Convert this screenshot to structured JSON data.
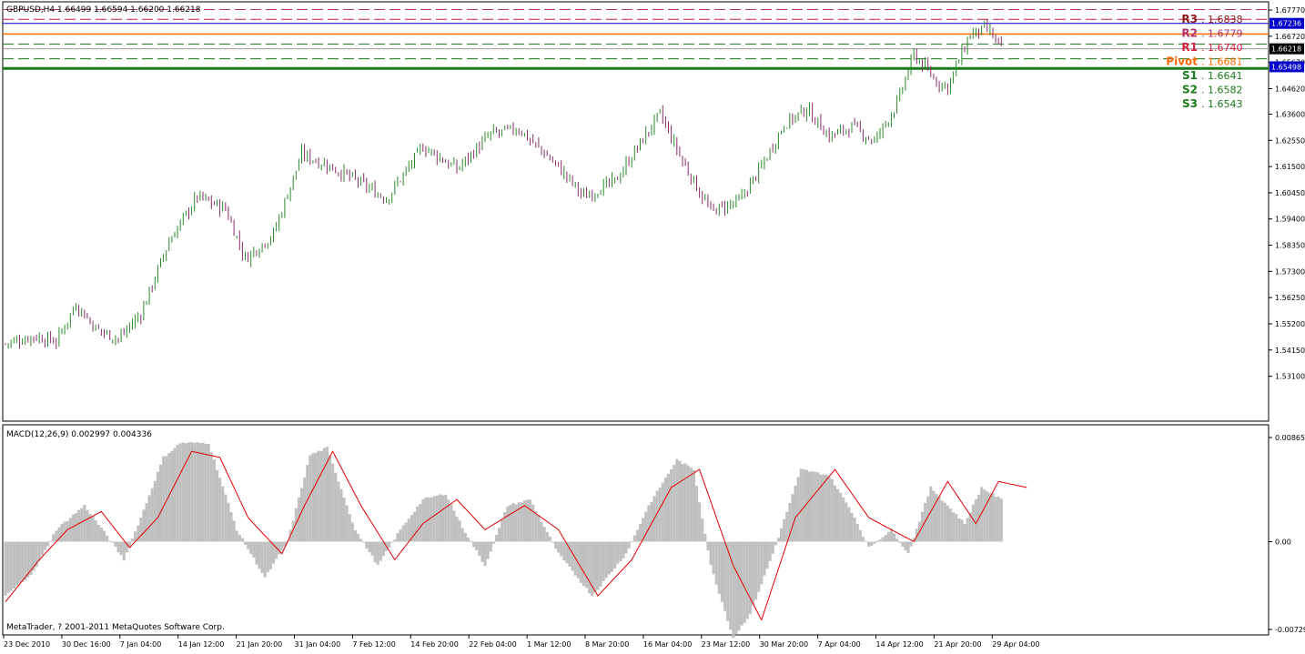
{
  "header": {
    "title": "GBPUSD,H4  1.66499 1.66594 1.66200 1.66218",
    "macd_label": "MACD(12,26,9) 0.002997 0.004336",
    "copyright": "MetaTrader, ? 2001-2011 MetaQuotes Software Corp."
  },
  "colors": {
    "bull": "#2a8a2a",
    "bear": "#8a2d6a",
    "hist": "#c0c0c0",
    "signal": "#e00000",
    "r3": "#8b1a1a",
    "r2": "#b0306a",
    "r1": "#d02040",
    "pivot": "#ff6a00",
    "support": "#1a7a1a",
    "badge": "#0000c8"
  },
  "pivots": [
    {
      "key": "R3",
      "label": "R3",
      "value_text": ". 1.6838",
      "value": 1.6838,
      "color": "#8b1a1a",
      "style": "dash"
    },
    {
      "key": "R2",
      "label": "R2",
      "value_text": ". 1.6779",
      "value": 1.6779,
      "color": "#b0306a",
      "style": "dash"
    },
    {
      "key": "R1",
      "label": "R1",
      "value_text": ". 1.6740",
      "value": 1.674,
      "color": "#d02040",
      "style": "dash"
    },
    {
      "key": "Pivot",
      "label": "Pivot",
      "value_text": ". 1.6681",
      "value": 1.6681,
      "color": "#ff6a00",
      "style": "solid"
    },
    {
      "key": "S1",
      "label": "S1",
      "value_text": ". 1.6641",
      "value": 1.6641,
      "color": "#1a7a1a",
      "style": "dash"
    },
    {
      "key": "S2",
      "label": "S2",
      "value_text": ". 1.6582",
      "value": 1.6582,
      "color": "#1a7a1a",
      "style": "dash"
    },
    {
      "key": "S3",
      "label": "S3",
      "value_text": ". 1.6543",
      "value": 1.6543,
      "color": "#1a7a1a",
      "style": "solid"
    }
  ],
  "price_badges": [
    {
      "text": "1.67236",
      "value": 1.67236,
      "bg": "#0000c8",
      "fg": "#ffffff"
    },
    {
      "text": "1.66218",
      "value": 1.66218,
      "bg": "#000000",
      "fg": "#ffffff"
    },
    {
      "text": "1.65498",
      "value": 1.65498,
      "bg": "#0000c8",
      "fg": "#ffffff"
    }
  ],
  "chart_data": [
    {
      "type": "candlestick",
      "title": "GBPUSD,H4  1.66499 1.66594 1.66200 1.66218",
      "ylim": [
        1.513,
        1.681
      ],
      "y_ticks": [
        "1.67770",
        "1.66720",
        "1.65670",
        "1.64620",
        "1.63600",
        "1.62550",
        "1.61500",
        "1.60450",
        "1.59400",
        "1.58350",
        "1.57300",
        "1.56250",
        "1.55200",
        "1.54150",
        "1.53100"
      ],
      "x_ticks": [
        "23 Dec 2010",
        "30 Dec 16:00",
        "7 Jan 04:00",
        "14 Jan 12:00",
        "21 Jan 20:00",
        "31 Jan 04:00",
        "7 Feb 12:00",
        "14 Feb 20:00",
        "22 Feb 04:00",
        "1 Mar 12:00",
        "8 Mar 20:00",
        "16 Mar 04:00",
        "23 Mar 12:00",
        "30 Mar 20:00",
        "7 Apr 04:00",
        "14 Apr 12:00",
        "21 Apr 20:00",
        "29 Apr 04:00"
      ],
      "close_anchors": [
        [
          0,
          1.544
        ],
        [
          10,
          1.547
        ],
        [
          18,
          1.545
        ],
        [
          25,
          1.56
        ],
        [
          32,
          1.55
        ],
        [
          40,
          1.546
        ],
        [
          48,
          1.556
        ],
        [
          58,
          1.585
        ],
        [
          68,
          1.603
        ],
        [
          78,
          1.598
        ],
        [
          85,
          1.578
        ],
        [
          95,
          1.588
        ],
        [
          105,
          1.62
        ],
        [
          115,
          1.615
        ],
        [
          125,
          1.609
        ],
        [
          135,
          1.602
        ],
        [
          148,
          1.623
        ],
        [
          160,
          1.614
        ],
        [
          172,
          1.628
        ],
        [
          182,
          1.63
        ],
        [
          195,
          1.616
        ],
        [
          205,
          1.603
        ],
        [
          216,
          1.609
        ],
        [
          226,
          1.626
        ],
        [
          232,
          1.636
        ],
        [
          240,
          1.617
        ],
        [
          250,
          1.597
        ],
        [
          260,
          1.601
        ],
        [
          268,
          1.615
        ],
        [
          276,
          1.632
        ],
        [
          284,
          1.638
        ],
        [
          292,
          1.627
        ],
        [
          300,
          1.631
        ],
        [
          308,
          1.625
        ],
        [
          316,
          1.64
        ],
        [
          322,
          1.66
        ],
        [
          330,
          1.649
        ],
        [
          334,
          1.647
        ],
        [
          342,
          1.668
        ],
        [
          348,
          1.67
        ],
        [
          353,
          1.6625
        ]
      ],
      "macd_histogram_anchors": [
        [
          0,
          -0.0045
        ],
        [
          10,
          -0.0025
        ],
        [
          18,
          0.001
        ],
        [
          28,
          0.003
        ],
        [
          36,
          0.0005
        ],
        [
          42,
          -0.0015
        ],
        [
          48,
          0.002
        ],
        [
          56,
          0.007
        ],
        [
          62,
          0.0082
        ],
        [
          72,
          0.0082
        ],
        [
          82,
          0.001
        ],
        [
          92,
          -0.003
        ],
        [
          100,
          0.0
        ],
        [
          108,
          0.0072
        ],
        [
          114,
          0.0078
        ],
        [
          124,
          0.001
        ],
        [
          132,
          -0.002
        ],
        [
          140,
          0.001
        ],
        [
          148,
          0.0035
        ],
        [
          156,
          0.004
        ],
        [
          162,
          0.0012
        ],
        [
          170,
          -0.002
        ],
        [
          178,
          0.003
        ],
        [
          186,
          0.0035
        ],
        [
          196,
          -0.001
        ],
        [
          208,
          -0.0045
        ],
        [
          220,
          -0.001
        ],
        [
          228,
          0.003
        ],
        [
          238,
          0.0068
        ],
        [
          244,
          0.006
        ],
        [
          250,
          -0.002
        ],
        [
          258,
          -0.008
        ],
        [
          264,
          -0.006
        ],
        [
          272,
          -0.001
        ],
        [
          282,
          0.006
        ],
        [
          292,
          0.0055
        ],
        [
          300,
          0.0025
        ],
        [
          306,
          -0.0005
        ],
        [
          314,
          0.001
        ],
        [
          320,
          -0.001
        ],
        [
          328,
          0.0045
        ],
        [
          334,
          0.003
        ],
        [
          340,
          0.0015
        ],
        [
          346,
          0.0045
        ],
        [
          353,
          0.0035
        ]
      ],
      "macd_signal_anchors": [
        [
          0,
          -0.005
        ],
        [
          12,
          -0.0015
        ],
        [
          22,
          0.001
        ],
        [
          34,
          0.0025
        ],
        [
          44,
          -0.0005
        ],
        [
          54,
          0.002
        ],
        [
          66,
          0.0075
        ],
        [
          76,
          0.007
        ],
        [
          86,
          0.002
        ],
        [
          98,
          -0.001
        ],
        [
          106,
          0.003
        ],
        [
          116,
          0.0075
        ],
        [
          126,
          0.003
        ],
        [
          138,
          -0.0015
        ],
        [
          148,
          0.0015
        ],
        [
          160,
          0.0035
        ],
        [
          170,
          0.001
        ],
        [
          184,
          0.003
        ],
        [
          196,
          0.001
        ],
        [
          210,
          -0.0045
        ],
        [
          222,
          -0.0015
        ],
        [
          236,
          0.0045
        ],
        [
          246,
          0.006
        ],
        [
          258,
          -0.002
        ],
        [
          268,
          -0.0065
        ],
        [
          280,
          0.002
        ],
        [
          294,
          0.006
        ],
        [
          306,
          0.002
        ],
        [
          314,
          0.001
        ],
        [
          322,
          0.0
        ],
        [
          334,
          0.005
        ],
        [
          344,
          0.0015
        ],
        [
          352,
          0.005
        ],
        [
          362,
          0.0045
        ]
      ],
      "macd_ylim": [
        -0.00729,
        0.00865
      ],
      "macd_y_ticks": [
        "0.00865",
        "0.00",
        "-0.00729"
      ]
    }
  ]
}
